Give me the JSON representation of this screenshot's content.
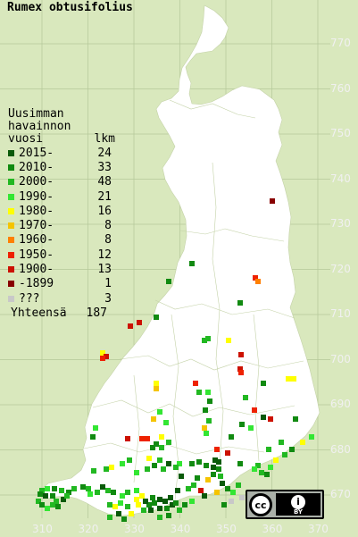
{
  "title": "Rumex obtusifolius",
  "legend": {
    "heading": [
      "Uusimman",
      "havainnon"
    ],
    "col_year": "vuosi",
    "col_count": "lkm",
    "items": [
      {
        "label": "2015-",
        "count": "24",
        "color": "#0a5a0a"
      },
      {
        "label": "2010-",
        "count": "33",
        "color": "#118a11"
      },
      {
        "label": "2000-",
        "count": "48",
        "color": "#22b822"
      },
      {
        "label": "1990-",
        "count": "21",
        "color": "#33e633"
      },
      {
        "label": "1980-",
        "count": "16",
        "color": "#ffff00"
      },
      {
        "label": "1970-",
        "count": "8",
        "color": "#f5c400"
      },
      {
        "label": "1960-",
        "count": "8",
        "color": "#ff8000"
      },
      {
        "label": "1950-",
        "count": "12",
        "color": "#ee2200"
      },
      {
        "label": "1900-",
        "count": "13",
        "color": "#cc1100"
      },
      {
        "label": "-1899",
        "count": "1",
        "color": "#880000"
      },
      {
        "label": "???",
        "count": "3",
        "color": "#c8c8c8"
      }
    ],
    "total_label": "Yhteensä",
    "total_count": "187"
  },
  "axes": {
    "y_ticks": [
      "770",
      "760",
      "750",
      "740",
      "730",
      "720",
      "710",
      "700",
      "690",
      "680",
      "670"
    ],
    "x_ticks": [
      "310",
      "320",
      "330",
      "340",
      "350",
      "360",
      "370"
    ]
  },
  "license_badge": {
    "cc": "cc",
    "by": "BY"
  },
  "colors": {
    "background": "#d9e8bd",
    "land": "#ffffff",
    "grid": "#b4c89a",
    "border": "#b8c8a0"
  }
}
